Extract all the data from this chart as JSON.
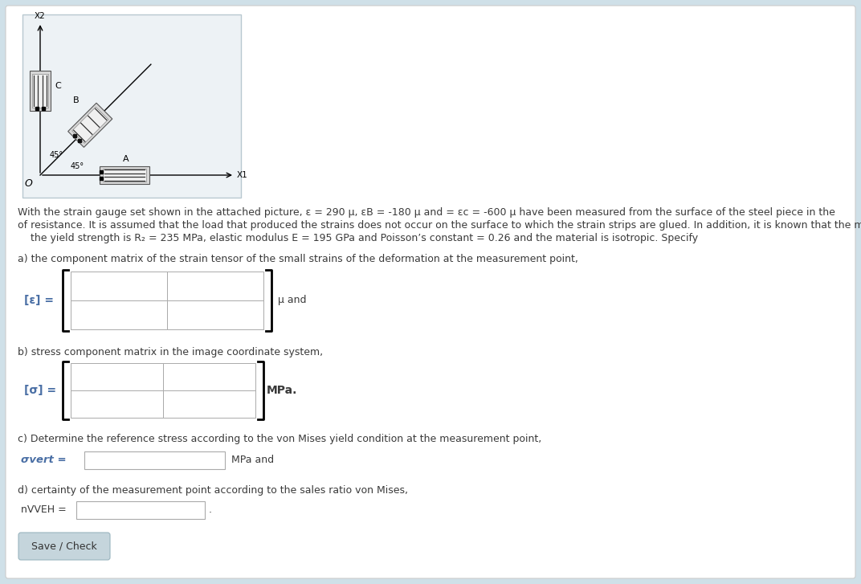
{
  "bg_color": "#cfe0e8",
  "page_bg": "#ffffff",
  "text_color": "#3a3a3a",
  "blue_text": "#4a6fa5",
  "title_line1": "With the strain gauge set shown in the attached picture, ε = 290 μ, εB = -180 μ and = εc = -600 μ have been measured from the surface of the steel piece in the",
  "title_line2": "of resistance. It is assumed that the load that produced the strains does not occur on the surface to which the strain strips are glued. In addition, it is known that the material",
  "title_line3": "    the yield strength is R₂ = 235 MPa, elastic modulus E = 195 GPa and Poisson’s constant = 0.26 and the material is isotropic. Specify",
  "part_a": "a) the component matrix of the strain tensor of the small strains of the deformation at the measurement point,",
  "part_b": "b) stress component matrix in the image coordinate system,",
  "part_c": "c) Determine the reference stress according to the von Mises yield condition at the measurement point,",
  "part_d": "d) certainty of the measurement point according to the sales ratio von Mises,",
  "label_epsilon": "[ε] =",
  "label_sigma": "[σ] =",
  "label_sigma_vert": "σvert =",
  "label_nVvEH": "nVVEH =",
  "unit_mu": "μ and",
  "unit_MPa": "MPa.",
  "unit_MPa2": "MPa and",
  "unit_dot": ".",
  "save_btn": "Save / Check",
  "fs_body": 9.0,
  "fs_label": 10.0,
  "fs_small": 8.0
}
